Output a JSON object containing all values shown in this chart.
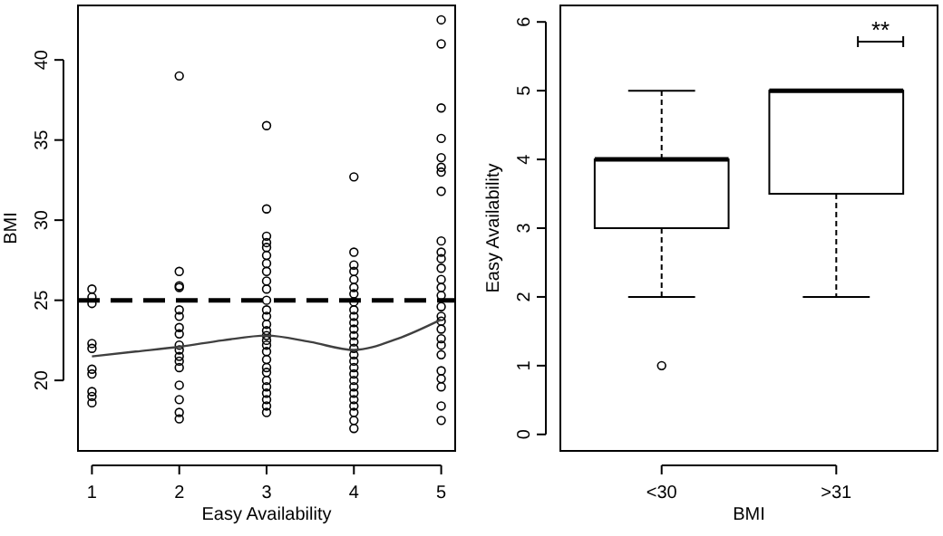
{
  "chart_data": [
    {
      "type": "scatter",
      "xlabel": "Easy Availability",
      "ylabel": "BMI",
      "xlim": [
        0.84,
        5.16
      ],
      "ylim": [
        15.6,
        43.4
      ],
      "xticks": [
        1,
        2,
        3,
        4,
        5
      ],
      "yticks": [
        20,
        25,
        30,
        35,
        40
      ],
      "series": [
        {
          "type": "scatter",
          "marker": "circle",
          "color": "#000000",
          "x": [
            1,
            1,
            1,
            1,
            1,
            1,
            1,
            1,
            1,
            1,
            2,
            2,
            2,
            2,
            2,
            2,
            2,
            2,
            2,
            2,
            2,
            2,
            2,
            2,
            2,
            2,
            2,
            3,
            3,
            3,
            3,
            3,
            3,
            3,
            3,
            3,
            3,
            3,
            3,
            3,
            3,
            3,
            3,
            3,
            3,
            3,
            3,
            3,
            3,
            3,
            3,
            3,
            3,
            3,
            3,
            4,
            4,
            4,
            4,
            4,
            4,
            4,
            4,
            4,
            4,
            4,
            4,
            4,
            4,
            4,
            4,
            4,
            4,
            4,
            4,
            4,
            4,
            4,
            4,
            4,
            4,
            4,
            5,
            5,
            5,
            5,
            5,
            5,
            5,
            5,
            5,
            5,
            5,
            5,
            5,
            5,
            5,
            5,
            5,
            5,
            5,
            5,
            5,
            5,
            5,
            5,
            5,
            5,
            5
          ],
          "values": [
            25.7,
            25.2,
            24.8,
            22.3,
            22.0,
            20.7,
            20.4,
            19.3,
            19.0,
            18.6,
            39.0,
            26.8,
            25.9,
            25.8,
            24.4,
            24.0,
            23.3,
            22.9,
            22.2,
            21.9,
            21.5,
            21.2,
            20.8,
            19.7,
            18.8,
            18.0,
            17.6,
            35.9,
            30.7,
            29.0,
            28.6,
            28.3,
            27.8,
            27.3,
            26.8,
            26.2,
            25.7,
            25.0,
            24.4,
            24.0,
            23.5,
            23.1,
            22.8,
            22.5,
            22.2,
            21.8,
            21.3,
            20.8,
            20.5,
            20.0,
            19.6,
            19.2,
            18.8,
            18.4,
            18.0,
            32.7,
            28.0,
            27.2,
            26.8,
            26.3,
            25.8,
            25.4,
            24.9,
            24.4,
            24.0,
            23.6,
            23.2,
            22.8,
            22.4,
            22.0,
            21.6,
            21.2,
            20.8,
            20.4,
            20.0,
            19.6,
            19.2,
            18.8,
            18.4,
            18.0,
            17.5,
            17.0,
            42.5,
            41.0,
            37.0,
            35.1,
            33.9,
            33.3,
            33.0,
            31.8,
            28.7,
            28.0,
            27.6,
            27.0,
            26.3,
            25.8,
            25.3,
            24.6,
            24.0,
            23.7,
            23.2,
            22.6,
            22.2,
            21.6,
            20.6,
            20.1,
            19.6,
            18.4,
            17.5
          ]
        },
        {
          "type": "line",
          "color": "#404040",
          "x": [
            1,
            1.5,
            2,
            2.5,
            3,
            3.5,
            4,
            4.5,
            5
          ],
          "values": [
            21.5,
            21.8,
            22.1,
            22.5,
            22.8,
            22.4,
            21.9,
            22.6,
            23.8
          ]
        }
      ],
      "ref_lines": [
        {
          "axis": "y",
          "value": 25,
          "line_style": "dashed",
          "color": "#000000"
        }
      ]
    },
    {
      "type": "box",
      "xlabel": "BMI",
      "ylabel": "Easy Availability",
      "categories": [
        "<30",
        ">31"
      ],
      "ylim": [
        -0.24,
        6.24
      ],
      "yticks": [
        0,
        1,
        2,
        3,
        4,
        5,
        6
      ],
      "boxes": [
        {
          "low": 2,
          "q1": 3,
          "median": 4,
          "q3": 4,
          "high": 5,
          "outliers": [
            1
          ]
        },
        {
          "low": 2,
          "q1": 3.5,
          "median": 5,
          "q3": 5,
          "high": 5
        }
      ],
      "annotations": [
        "**"
      ]
    }
  ]
}
